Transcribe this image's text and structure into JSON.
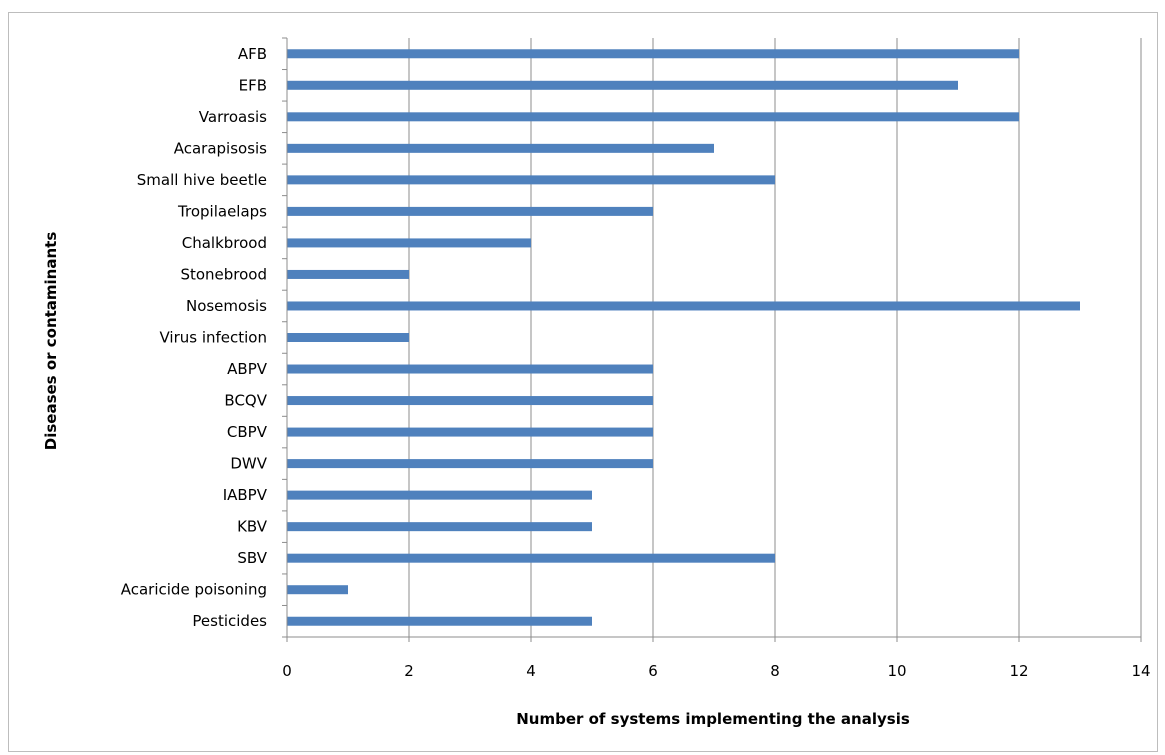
{
  "chart_data": {
    "type": "bar",
    "orientation": "horizontal",
    "title": "",
    "xlabel": "Number of systems implementing the analysis",
    "ylabel": "Diseases or contaminants",
    "categories": [
      "AFB",
      "EFB",
      "Varroasis",
      "Acarapisosis",
      "Small hive beetle",
      "Tropilaelaps",
      "Chalkbrood",
      "Stonebrood",
      "Nosemosis",
      "Virus infection",
      "ABPV",
      "BCQV",
      "CBPV",
      "DWV",
      "IABPV",
      "KBV",
      "SBV",
      "Acaricide poisoning",
      "Pesticides"
    ],
    "values": [
      12,
      11,
      12,
      7,
      8,
      6,
      4,
      2,
      13,
      2,
      6,
      6,
      6,
      6,
      5,
      5,
      8,
      1,
      5
    ],
    "xlim": [
      0,
      14
    ],
    "xticks": [
      "0",
      "2",
      "4",
      "6",
      "8",
      "10",
      "12",
      "14"
    ],
    "grid": true,
    "legend": "none",
    "bar_color": "#4f81bd"
  }
}
